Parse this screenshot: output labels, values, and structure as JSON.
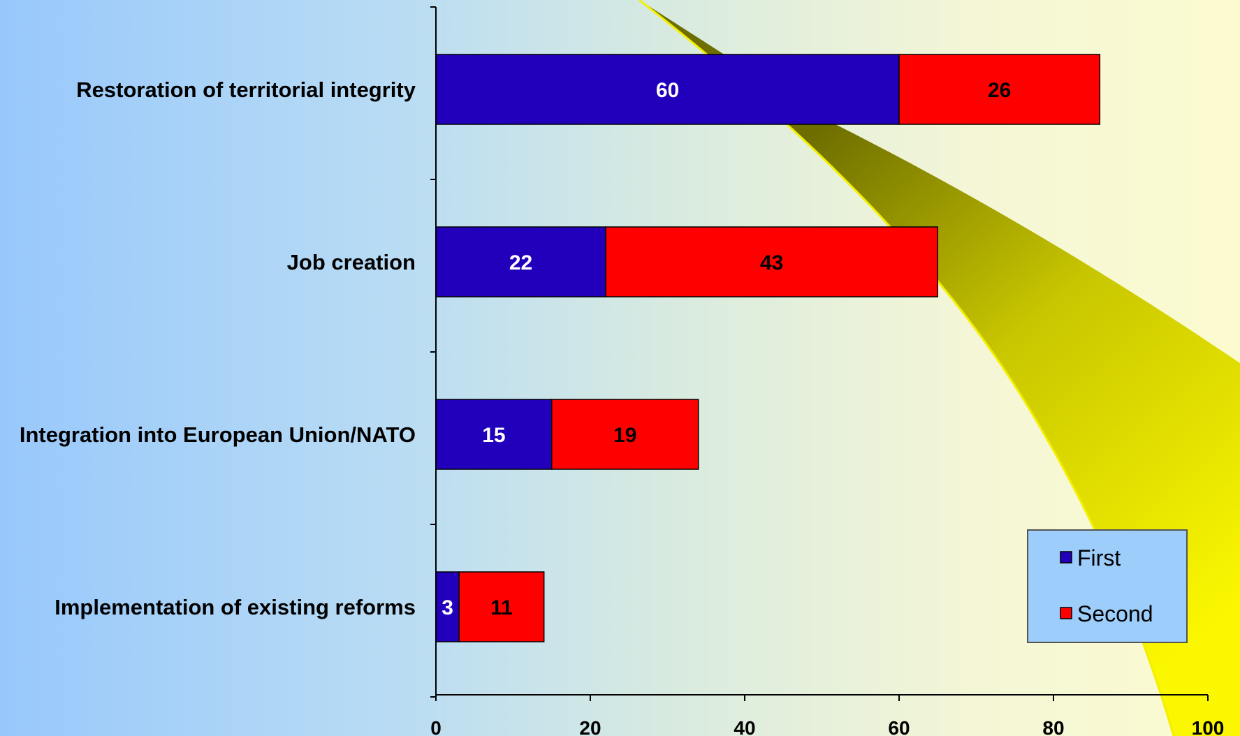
{
  "chart_data": {
    "type": "bar",
    "orientation": "horizontal",
    "stacked": true,
    "categories": [
      "Restoration of territorial integrity",
      "Job creation",
      "Integration into European Union/NATO",
      "Implementation of existing reforms"
    ],
    "series": [
      {
        "name": "First",
        "values": [
          60,
          22,
          15,
          3
        ],
        "color": "#2200bb",
        "label_color": "#ffffff"
      },
      {
        "name": "Second",
        "values": [
          26,
          43,
          19,
          11
        ],
        "color": "#ff0000",
        "label_color": "#000000"
      }
    ],
    "xlim": [
      0,
      100
    ],
    "xticks": [
      0,
      20,
      40,
      60,
      80,
      100
    ],
    "grid": false,
    "legend": {
      "position": "bottom-right"
    },
    "title": "",
    "xlabel": "",
    "ylabel": ""
  },
  "colors": {
    "legend_background": "#9dcdfb",
    "decoration": "#f5f200"
  }
}
